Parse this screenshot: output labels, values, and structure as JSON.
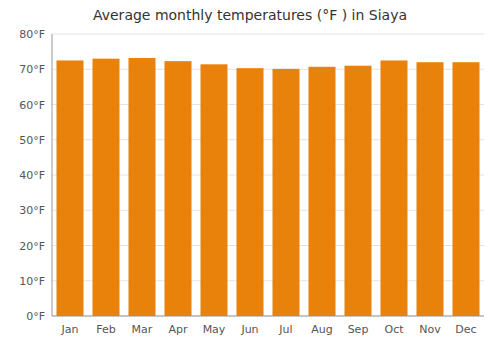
{
  "chart_data": {
    "type": "bar",
    "title": "Average monthly temperatures (°F ) in Siaya",
    "categories": [
      "Jan",
      "Feb",
      "Mar",
      "Apr",
      "May",
      "Jun",
      "Jul",
      "Aug",
      "Sep",
      "Oct",
      "Nov",
      "Dec"
    ],
    "values": [
      72.5,
      73.0,
      73.2,
      72.3,
      71.4,
      70.3,
      70.1,
      70.7,
      71.0,
      72.5,
      72.0,
      72.0
    ],
    "color": "#E8820A",
    "ylim": [
      0,
      80
    ],
    "yticks": [
      {
        "value": 0,
        "label": "0°F"
      },
      {
        "value": 10,
        "label": "10°F"
      },
      {
        "value": 20,
        "label": "20°F"
      },
      {
        "value": 30,
        "label": "30°F"
      },
      {
        "value": 40,
        "label": "40°F"
      },
      {
        "value": 50,
        "label": "50°F"
      },
      {
        "value": 60,
        "label": "60°F"
      },
      {
        "value": 70,
        "label": "70°F"
      },
      {
        "value": 80,
        "label": "80°F"
      }
    ],
    "grid": true
  }
}
